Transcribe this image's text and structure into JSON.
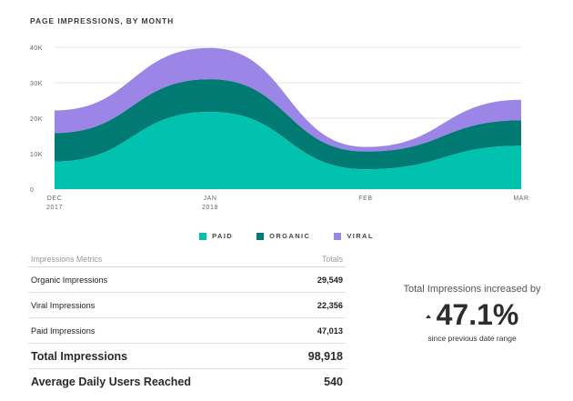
{
  "chart_data": {
    "type": "area",
    "stacked": true,
    "title": "PAGE IMPRESSIONS, BY MONTH",
    "x": [
      "DEC 2017",
      "JAN 2018",
      "FEB",
      "MAR"
    ],
    "x_tick_labels": [
      {
        "line1": "DEC",
        "line2": "2017"
      },
      {
        "line1": "JAN",
        "line2": "2018"
      },
      {
        "line1": "FEB",
        "line2": ""
      },
      {
        "line1": "MAR",
        "line2": ""
      }
    ],
    "y_ticks": [
      "0",
      "10K",
      "20K",
      "30K",
      "40K"
    ],
    "ylim": [
      0,
      40000
    ],
    "series": [
      {
        "name": "PAID",
        "color": "#00c2ae",
        "values": [
          7800,
          21800,
          5600,
          12200
        ]
      },
      {
        "name": "ORGANIC",
        "color": "#007a73",
        "values": [
          8000,
          9200,
          5000,
          7200
        ]
      },
      {
        "name": "VIRAL",
        "color": "#9b86e8",
        "values": [
          6400,
          8800,
          1300,
          5800
        ]
      }
    ],
    "legend": "bottom-center",
    "grid": true
  },
  "table": {
    "header": {
      "metric": "Impressions Metrics",
      "totals": "Totals"
    },
    "rows": [
      {
        "label": "Organic Impressions",
        "value": "29,549"
      },
      {
        "label": "Viral Impressions",
        "value": "22,356"
      },
      {
        "label": "Paid Impressions",
        "value": "47,013"
      }
    ],
    "total": {
      "label": "Total Impressions",
      "value": "98,918"
    },
    "average": {
      "label": "Average Daily Users Reached",
      "value": "540"
    }
  },
  "summary": {
    "label": "Total Impressions increased by",
    "value": "47.1%",
    "sub": "since previous date range",
    "icon": "up-triangle-icon"
  }
}
